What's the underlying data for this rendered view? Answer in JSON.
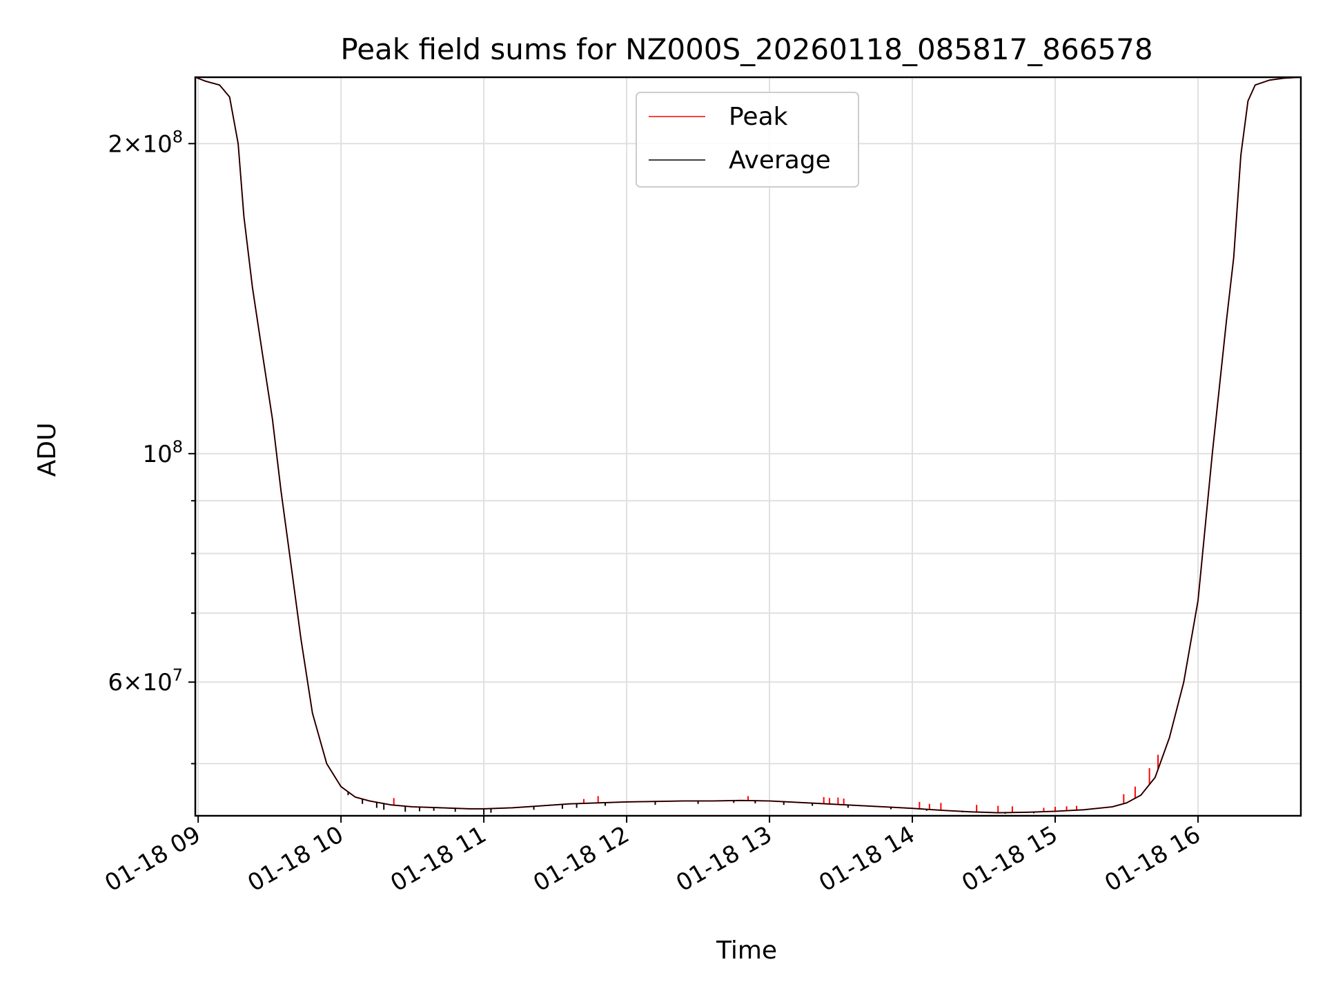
{
  "chart_data": {
    "type": "line",
    "title": "Peak field sums for NZ000S_20260118_085817_866578",
    "xlabel": "Time",
    "ylabel": "ADU",
    "yscale": "log",
    "xlim": [
      8.98,
      16.72
    ],
    "ylim": [
      44500000,
      232000000
    ],
    "x_unit": "hours (2026-01-18)",
    "x_ticks": [
      {
        "value": 9,
        "label": "01-18 09"
      },
      {
        "value": 10,
        "label": "01-18 10"
      },
      {
        "value": 11,
        "label": "01-18 11"
      },
      {
        "value": 12,
        "label": "01-18 12"
      },
      {
        "value": 13,
        "label": "01-18 13"
      },
      {
        "value": 14,
        "label": "01-18 14"
      },
      {
        "value": 15,
        "label": "01-18 15"
      },
      {
        "value": 16,
        "label": "01-18 16"
      }
    ],
    "y_ticks": [
      {
        "value": 60000000,
        "mantissa": "6",
        "exponent": "7"
      },
      {
        "value": 100000000,
        "mantissa": "",
        "exponent": "8"
      },
      {
        "value": 200000000,
        "mantissa": "2",
        "exponent": "8"
      }
    ],
    "y_minor_ticks": [
      50000000,
      70000000,
      80000000,
      90000000
    ],
    "legend": {
      "position": "upper-center",
      "entries": [
        "Peak",
        "Average"
      ]
    },
    "series": [
      {
        "name": "Peak",
        "color": "#ff0000",
        "x": [
          8.98,
          9.05,
          9.15,
          9.22,
          9.28,
          9.32,
          9.38,
          9.45,
          9.52,
          9.58,
          9.65,
          9.72,
          9.8,
          9.9,
          10.0,
          10.1,
          10.2,
          10.35,
          10.5,
          10.7,
          10.9,
          11.0,
          11.2,
          11.4,
          11.6,
          11.8,
          12.0,
          12.2,
          12.4,
          12.6,
          12.8,
          13.0,
          13.2,
          13.4,
          13.6,
          13.8,
          14.0,
          14.2,
          14.4,
          14.6,
          14.8,
          15.0,
          15.2,
          15.4,
          15.5,
          15.6,
          15.7,
          15.8,
          15.9,
          16.0,
          16.1,
          16.2,
          16.25,
          16.3,
          16.35,
          16.4,
          16.5,
          16.6,
          16.72
        ],
        "values": [
          232000000,
          230000000,
          228000000,
          222000000,
          200000000,
          170000000,
          145000000,
          125000000,
          108000000,
          92000000,
          78000000,
          66000000,
          56000000,
          50000000,
          47500000,
          46400000,
          46000000,
          45600000,
          45400000,
          45300000,
          45200000,
          45200000,
          45300000,
          45500000,
          45700000,
          45800000,
          45900000,
          45950000,
          46000000,
          46000000,
          46050000,
          46000000,
          45850000,
          45700000,
          45550000,
          45400000,
          45250000,
          45050000,
          44900000,
          44800000,
          44850000,
          44950000,
          45100000,
          45400000,
          45800000,
          46600000,
          48500000,
          53000000,
          60000000,
          72000000,
          100000000,
          135000000,
          155000000,
          195000000,
          220000000,
          228000000,
          230500000,
          231500000,
          232000000
        ],
        "spikes": [
          [
            10.37,
            46300000
          ],
          [
            11.7,
            46200000
          ],
          [
            11.8,
            46500000
          ],
          [
            12.85,
            46500000
          ],
          [
            13.38,
            46400000
          ],
          [
            13.42,
            46300000
          ],
          [
            13.48,
            46350000
          ],
          [
            13.52,
            46250000
          ],
          [
            14.05,
            45900000
          ],
          [
            14.12,
            45700000
          ],
          [
            14.2,
            45800000
          ],
          [
            14.45,
            45600000
          ],
          [
            14.6,
            45500000
          ],
          [
            14.7,
            45450000
          ],
          [
            14.92,
            45300000
          ],
          [
            15.0,
            45400000
          ],
          [
            15.08,
            45450000
          ],
          [
            15.15,
            45500000
          ],
          [
            15.48,
            46700000
          ],
          [
            15.56,
            47500000
          ],
          [
            15.66,
            49500000
          ],
          [
            15.72,
            51000000
          ]
        ]
      },
      {
        "name": "Average",
        "color": "#000000",
        "x": [
          8.98,
          9.05,
          9.15,
          9.22,
          9.28,
          9.32,
          9.38,
          9.45,
          9.52,
          9.58,
          9.65,
          9.72,
          9.8,
          9.9,
          10.0,
          10.1,
          10.2,
          10.35,
          10.5,
          10.7,
          10.9,
          11.0,
          11.2,
          11.4,
          11.6,
          11.8,
          12.0,
          12.2,
          12.4,
          12.6,
          12.8,
          13.0,
          13.2,
          13.4,
          13.6,
          13.8,
          14.0,
          14.2,
          14.4,
          14.6,
          14.8,
          15.0,
          15.2,
          15.4,
          15.5,
          15.6,
          15.7,
          15.8,
          15.9,
          16.0,
          16.1,
          16.2,
          16.25,
          16.3,
          16.35,
          16.4,
          16.5,
          16.6,
          16.72
        ],
        "values": [
          232000000,
          230000000,
          228000000,
          222000000,
          200000000,
          170000000,
          145000000,
          125000000,
          108000000,
          92000000,
          78000000,
          66000000,
          56000000,
          50000000,
          47500000,
          46400000,
          46000000,
          45600000,
          45400000,
          45300000,
          45200000,
          45200000,
          45300000,
          45500000,
          45700000,
          45800000,
          45900000,
          45950000,
          46000000,
          46000000,
          46050000,
          46000000,
          45850000,
          45700000,
          45550000,
          45400000,
          45250000,
          45050000,
          44900000,
          44800000,
          44850000,
          44950000,
          45100000,
          45400000,
          45800000,
          46600000,
          48500000,
          53000000,
          60000000,
          72000000,
          100000000,
          135000000,
          155000000,
          195000000,
          220000000,
          228000000,
          230500000,
          231500000,
          232000000
        ],
        "dips": [
          [
            10.05,
            46600000
          ],
          [
            10.15,
            45700000
          ],
          [
            10.25,
            45300000
          ],
          [
            10.3,
            45100000
          ],
          [
            10.45,
            44900000
          ],
          [
            10.55,
            44950000
          ],
          [
            10.65,
            45000000
          ],
          [
            10.8,
            44900000
          ],
          [
            11.0,
            44600000
          ],
          [
            11.05,
            44800000
          ],
          [
            11.35,
            45100000
          ],
          [
            11.55,
            45200000
          ],
          [
            11.65,
            45300000
          ],
          [
            11.85,
            45500000
          ],
          [
            12.2,
            45600000
          ],
          [
            12.5,
            45700000
          ],
          [
            12.75,
            45800000
          ],
          [
            12.9,
            45750000
          ],
          [
            13.1,
            45600000
          ],
          [
            13.3,
            45500000
          ],
          [
            13.55,
            45300000
          ],
          [
            13.85,
            45150000
          ],
          [
            14.1,
            45000000
          ],
          [
            14.35,
            44850000
          ],
          [
            14.65,
            44700000
          ],
          [
            14.85,
            44750000
          ]
        ]
      }
    ]
  }
}
